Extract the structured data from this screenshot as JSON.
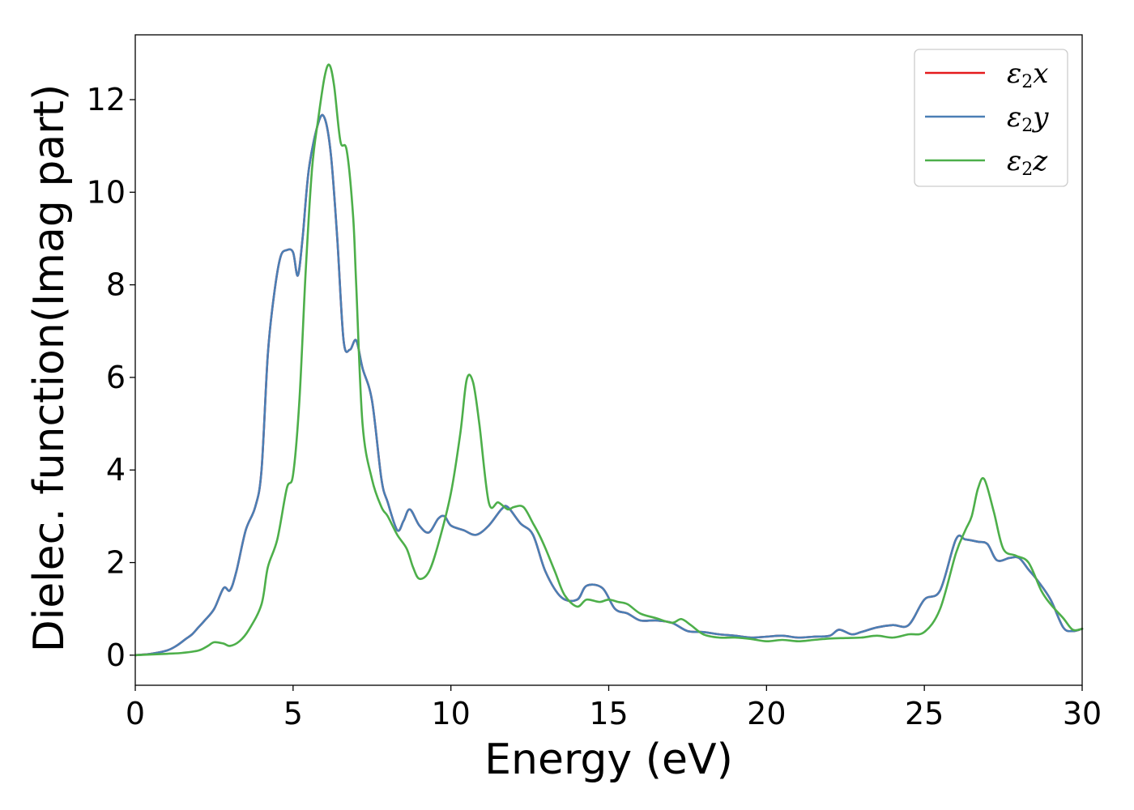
{
  "chart_data": {
    "type": "line",
    "title": "",
    "xlabel": "Energy (eV)",
    "ylabel": "Dielec. function(Imag part)",
    "xlim": [
      0,
      30
    ],
    "ylim": [
      -0.65,
      13.4
    ],
    "xticks": [
      0,
      5,
      10,
      15,
      20,
      25,
      30
    ],
    "yticks": [
      0,
      2,
      4,
      6,
      8,
      10,
      12
    ],
    "grid": false,
    "legend_position": "top-right",
    "series": [
      {
        "name": "ε2x",
        "legend_base": "ε",
        "legend_sub": "2",
        "legend_var": "x",
        "color": "#e41a1c",
        "x": [
          0,
          0.5,
          1.0,
          1.3,
          1.6,
          1.8,
          2.0,
          2.2,
          2.5,
          2.8,
          3.0,
          3.2,
          3.5,
          3.8,
          4.0,
          4.2,
          4.4,
          4.6,
          4.8,
          5.0,
          5.15,
          5.3,
          5.5,
          5.8,
          6.0,
          6.2,
          6.4,
          6.6,
          6.8,
          7.0,
          7.2,
          7.5,
          7.8,
          8.0,
          8.3,
          8.5,
          8.7,
          9.0,
          9.3,
          9.6,
          9.8,
          10.0,
          10.4,
          10.8,
          11.2,
          11.6,
          11.8,
          12.2,
          12.6,
          13.0,
          13.5,
          14.0,
          14.3,
          14.8,
          15.2,
          15.6,
          16.0,
          16.5,
          17.0,
          17.5,
          18.0,
          18.5,
          19.0,
          19.5,
          20.0,
          20.5,
          21.0,
          21.5,
          22.0,
          22.3,
          22.7,
          23.0,
          23.5,
          24.0,
          24.5,
          25.0,
          25.5,
          26.0,
          26.3,
          26.7,
          27.0,
          27.3,
          27.7,
          28.0,
          28.3,
          28.6,
          29.0,
          29.4,
          29.7,
          30.0
        ],
        "y": [
          0,
          0.03,
          0.1,
          0.2,
          0.35,
          0.45,
          0.6,
          0.75,
          1.0,
          1.45,
          1.4,
          1.8,
          2.7,
          3.2,
          4.0,
          6.5,
          7.8,
          8.6,
          8.75,
          8.7,
          8.2,
          9.0,
          10.5,
          11.5,
          11.6,
          10.8,
          9.0,
          6.8,
          6.6,
          6.8,
          6.2,
          5.5,
          3.8,
          3.3,
          2.7,
          2.9,
          3.15,
          2.8,
          2.65,
          2.95,
          3.0,
          2.8,
          2.7,
          2.6,
          2.8,
          3.15,
          3.2,
          2.85,
          2.6,
          1.8,
          1.25,
          1.2,
          1.5,
          1.45,
          1.0,
          0.9,
          0.75,
          0.75,
          0.7,
          0.52,
          0.5,
          0.45,
          0.42,
          0.38,
          0.4,
          0.42,
          0.38,
          0.4,
          0.42,
          0.55,
          0.45,
          0.5,
          0.6,
          0.65,
          0.65,
          1.2,
          1.4,
          2.5,
          2.5,
          2.45,
          2.4,
          2.05,
          2.1,
          2.1,
          1.85,
          1.6,
          1.2,
          0.6,
          0.52,
          0.57
        ]
      },
      {
        "name": "ε2y",
        "legend_base": "ε",
        "legend_sub": "2",
        "legend_var": "y",
        "color": "#4a7fb5",
        "x": [
          0,
          0.5,
          1.0,
          1.3,
          1.6,
          1.8,
          2.0,
          2.2,
          2.5,
          2.8,
          3.0,
          3.2,
          3.5,
          3.8,
          4.0,
          4.2,
          4.4,
          4.6,
          4.8,
          5.0,
          5.15,
          5.3,
          5.5,
          5.8,
          6.0,
          6.2,
          6.4,
          6.6,
          6.8,
          7.0,
          7.2,
          7.5,
          7.8,
          8.0,
          8.3,
          8.5,
          8.7,
          9.0,
          9.3,
          9.6,
          9.8,
          10.0,
          10.4,
          10.8,
          11.2,
          11.6,
          11.8,
          12.2,
          12.6,
          13.0,
          13.5,
          14.0,
          14.3,
          14.8,
          15.2,
          15.6,
          16.0,
          16.5,
          17.0,
          17.5,
          18.0,
          18.5,
          19.0,
          19.5,
          20.0,
          20.5,
          21.0,
          21.5,
          22.0,
          22.3,
          22.7,
          23.0,
          23.5,
          24.0,
          24.5,
          25.0,
          25.5,
          26.0,
          26.3,
          26.7,
          27.0,
          27.3,
          27.7,
          28.0,
          28.3,
          28.6,
          29.0,
          29.4,
          29.7,
          30.0
        ],
        "y": [
          0,
          0.03,
          0.1,
          0.2,
          0.35,
          0.45,
          0.6,
          0.75,
          1.0,
          1.45,
          1.4,
          1.8,
          2.7,
          3.2,
          4.0,
          6.5,
          7.8,
          8.6,
          8.75,
          8.7,
          8.2,
          9.0,
          10.5,
          11.5,
          11.6,
          10.8,
          9.0,
          6.8,
          6.6,
          6.8,
          6.2,
          5.5,
          3.8,
          3.3,
          2.7,
          2.9,
          3.15,
          2.8,
          2.65,
          2.95,
          3.0,
          2.8,
          2.7,
          2.6,
          2.8,
          3.15,
          3.2,
          2.85,
          2.6,
          1.8,
          1.25,
          1.2,
          1.5,
          1.45,
          1.0,
          0.9,
          0.75,
          0.75,
          0.7,
          0.52,
          0.5,
          0.45,
          0.42,
          0.38,
          0.4,
          0.42,
          0.38,
          0.4,
          0.42,
          0.55,
          0.45,
          0.5,
          0.6,
          0.65,
          0.65,
          1.2,
          1.4,
          2.5,
          2.5,
          2.45,
          2.4,
          2.05,
          2.1,
          2.1,
          1.85,
          1.6,
          1.2,
          0.6,
          0.52,
          0.57
        ]
      },
      {
        "name": "ε2z",
        "legend_base": "ε",
        "legend_sub": "2",
        "legend_var": "z",
        "color": "#4daf4a",
        "x": [
          0,
          1.0,
          1.5,
          2.0,
          2.3,
          2.5,
          2.8,
          3.0,
          3.3,
          3.6,
          4.0,
          4.2,
          4.5,
          4.8,
          5.0,
          5.2,
          5.4,
          5.6,
          5.8,
          6.0,
          6.15,
          6.3,
          6.5,
          6.7,
          6.9,
          7.0,
          7.2,
          7.5,
          7.8,
          8.0,
          8.3,
          8.6,
          8.8,
          9.0,
          9.3,
          9.6,
          10.0,
          10.3,
          10.5,
          10.7,
          10.9,
          11.2,
          11.5,
          11.8,
          12.0,
          12.3,
          12.6,
          12.8,
          13.0,
          13.3,
          13.6,
          14.0,
          14.3,
          14.7,
          15.0,
          15.3,
          15.6,
          16.0,
          16.5,
          17.0,
          17.3,
          17.6,
          18.0,
          18.5,
          19.0,
          19.5,
          20.0,
          20.5,
          21.0,
          21.5,
          22.0,
          22.5,
          23.0,
          23.5,
          24.0,
          24.5,
          25.0,
          25.5,
          26.0,
          26.3,
          26.5,
          26.7,
          26.9,
          27.2,
          27.5,
          27.9,
          28.3,
          28.7,
          29.0,
          29.4,
          29.7,
          30.0
        ],
        "y": [
          0,
          0.03,
          0.05,
          0.1,
          0.2,
          0.28,
          0.25,
          0.2,
          0.3,
          0.55,
          1.1,
          1.9,
          2.5,
          3.6,
          3.9,
          5.5,
          8.3,
          10.5,
          11.6,
          12.5,
          12.75,
          12.3,
          11.1,
          10.9,
          9.5,
          8.0,
          5.0,
          3.8,
          3.2,
          3.0,
          2.6,
          2.3,
          1.9,
          1.65,
          1.8,
          2.4,
          3.5,
          4.8,
          5.95,
          5.9,
          5.0,
          3.3,
          3.3,
          3.15,
          3.2,
          3.2,
          2.85,
          2.6,
          2.3,
          1.8,
          1.3,
          1.05,
          1.2,
          1.15,
          1.2,
          1.15,
          1.1,
          0.9,
          0.8,
          0.7,
          0.78,
          0.65,
          0.45,
          0.38,
          0.38,
          0.35,
          0.3,
          0.33,
          0.3,
          0.33,
          0.36,
          0.37,
          0.38,
          0.42,
          0.38,
          0.45,
          0.5,
          1.0,
          2.2,
          2.7,
          3.0,
          3.6,
          3.8,
          3.1,
          2.3,
          2.15,
          2.0,
          1.4,
          1.1,
          0.8,
          0.55,
          0.57
        ]
      }
    ]
  }
}
